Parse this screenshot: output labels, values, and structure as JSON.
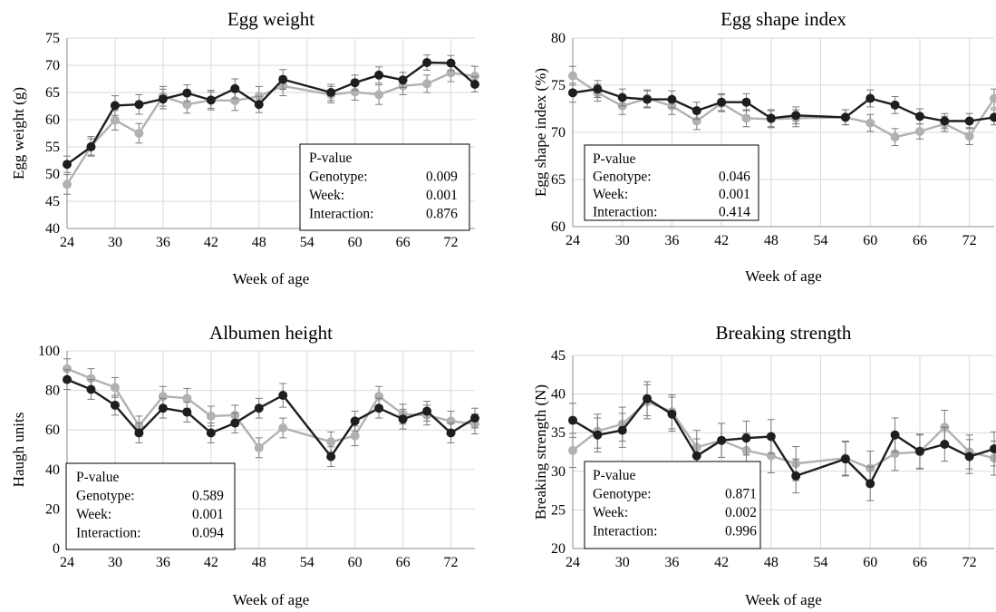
{
  "colors": {
    "genotype_a": "#1e1e1e",
    "genotype_b": "#b1b1b1",
    "grid": "#d9d9d9",
    "axis": "#8c8c8c"
  },
  "chart_data": [
    {
      "type": "line",
      "title": "Egg weight",
      "xlabel": "Week of age",
      "ylabel": "Egg weight (g)",
      "xlim": [
        24,
        75
      ],
      "ylim": [
        40,
        75
      ],
      "xticks": [
        "24",
        "30",
        "36",
        "42",
        "48",
        "54",
        "60",
        "66",
        "72"
      ],
      "yticks": [
        "40",
        "45",
        "50",
        "55",
        "60",
        "65",
        "70",
        "75"
      ],
      "grid": true,
      "series": [
        {
          "color": "#1e1e1e",
          "x": [
            24,
            27,
            30,
            33,
            36,
            39,
            42,
            45,
            48,
            51,
            57,
            60,
            63,
            66,
            69,
            72,
            75
          ],
          "y": [
            51.8,
            55.0,
            62.6,
            62.8,
            63.8,
            64.9,
            63.6,
            65.7,
            62.8,
            67.4,
            65.0,
            66.8,
            68.2,
            67.3,
            70.5,
            70.4,
            66.5
          ],
          "err": [
            1.5,
            1.5,
            1.8,
            1.8,
            1.8,
            1.5,
            1.5,
            1.8,
            1.5,
            1.8,
            1.5,
            1.4,
            1.5,
            1.4,
            1.4,
            1.4,
            1.4
          ]
        },
        {
          "color": "#b1b1b1",
          "x": [
            24,
            27,
            30,
            33,
            36,
            39,
            42,
            45,
            48,
            51,
            57,
            60,
            63,
            66,
            69,
            72,
            75
          ],
          "y": [
            48.1,
            55.1,
            59.9,
            57.5,
            64.3,
            62.8,
            63.6,
            63.5,
            64.3,
            66.2,
            64.6,
            65.1,
            64.6,
            66.2,
            66.6,
            68.6,
            68.0
          ],
          "err": [
            1.8,
            1.8,
            1.8,
            1.8,
            1.8,
            1.6,
            1.8,
            1.8,
            1.8,
            1.8,
            1.5,
            1.5,
            1.8,
            1.6,
            1.6,
            1.6,
            1.8
          ]
        }
      ],
      "pvalue_box": {
        "heading": "P-value",
        "legend_position": "bottom-right",
        "rows": [
          {
            "label": "Genotype:",
            "value": "0.009"
          },
          {
            "label": "Week:",
            "value": "0.001"
          },
          {
            "label": "Interaction:",
            "value": "0.876"
          }
        ]
      }
    },
    {
      "type": "line",
      "title": "Egg shape index",
      "xlabel": "Week of age",
      "ylabel": "Egg shape index (%)",
      "xlim": [
        24,
        75
      ],
      "ylim": [
        60,
        80
      ],
      "xticks": [
        "24",
        "30",
        "36",
        "42",
        "48",
        "54",
        "60",
        "66",
        "72"
      ],
      "yticks": [
        "60",
        "65",
        "70",
        "75",
        "80"
      ],
      "grid": true,
      "series": [
        {
          "color": "#1e1e1e",
          "x": [
            24,
            27,
            30,
            33,
            36,
            39,
            42,
            45,
            48,
            51,
            57,
            60,
            63,
            66,
            69,
            72,
            75
          ],
          "y": [
            74.2,
            74.6,
            73.7,
            73.5,
            73.5,
            72.3,
            73.2,
            73.2,
            71.5,
            71.8,
            71.6,
            73.6,
            72.9,
            71.7,
            71.2,
            71.2,
            71.6
          ],
          "err": [
            1.0,
            0.9,
            0.9,
            0.9,
            0.9,
            0.9,
            0.9,
            0.9,
            0.9,
            0.9,
            0.8,
            0.9,
            0.9,
            0.8,
            0.8,
            0.8,
            0.8
          ]
        },
        {
          "color": "#b1b1b1",
          "x": [
            24,
            27,
            30,
            33,
            36,
            39,
            42,
            45,
            48,
            51,
            57,
            60,
            63,
            66,
            69,
            72,
            75
          ],
          "y": [
            76.0,
            74.2,
            72.8,
            73.6,
            72.8,
            71.2,
            73.1,
            71.5,
            71.4,
            71.5,
            71.6,
            71.0,
            69.5,
            70.1,
            70.9,
            69.6,
            73.6
          ],
          "err": [
            1.0,
            0.9,
            0.9,
            0.9,
            0.9,
            0.9,
            0.9,
            0.9,
            0.9,
            0.9,
            0.8,
            0.9,
            0.9,
            0.8,
            0.8,
            0.9,
            1.0
          ]
        }
      ],
      "pvalue_box": {
        "heading": "P-value",
        "legend_position": "bottom-left",
        "rows": [
          {
            "label": "Genotype:",
            "value": "0.046"
          },
          {
            "label": "Week:",
            "value": "0.001"
          },
          {
            "label": "Interaction:",
            "value": "0.414"
          }
        ]
      }
    },
    {
      "type": "line",
      "title": "Albumen height",
      "xlabel": "Week of age",
      "ylabel": "Haugh units",
      "xlim": [
        24,
        75
      ],
      "ylim": [
        0,
        100
      ],
      "xticks": [
        "24",
        "30",
        "36",
        "42",
        "48",
        "54",
        "60",
        "66",
        "72"
      ],
      "yticks": [
        "0",
        "20",
        "40",
        "60",
        "80",
        "100"
      ],
      "grid": true,
      "series": [
        {
          "color": "#1e1e1e",
          "x": [
            24,
            27,
            30,
            33,
            36,
            39,
            42,
            45,
            48,
            51,
            57,
            60,
            63,
            66,
            69,
            72,
            75
          ],
          "y": [
            85.5,
            80.5,
            72.5,
            58.5,
            71.0,
            69.0,
            58.5,
            63.5,
            71.0,
            77.5,
            46.5,
            64.5,
            71.0,
            65.5,
            69.5,
            58.5,
            66.0
          ],
          "err": [
            5,
            5,
            5,
            5,
            5,
            5,
            5,
            5,
            5,
            6,
            5,
            5,
            5,
            5,
            5,
            5,
            5
          ]
        },
        {
          "color": "#b1b1b1",
          "x": [
            24,
            27,
            30,
            33,
            36,
            39,
            42,
            45,
            48,
            51,
            57,
            60,
            63,
            66,
            69,
            72,
            75
          ],
          "y": [
            91.0,
            86.0,
            81.5,
            62.0,
            77.0,
            76.0,
            67.0,
            67.5,
            51.0,
            61.0,
            54.0,
            57.0,
            77.0,
            68.0,
            67.5,
            64.5,
            63.0
          ],
          "err": [
            5,
            5,
            5,
            5,
            5,
            5,
            5,
            5,
            5,
            5,
            5,
            5,
            5,
            5,
            5,
            5,
            5
          ]
        }
      ],
      "pvalue_box": {
        "heading": "P-value",
        "legend_position": "bottom-left",
        "rows": [
          {
            "label": "Genotype:",
            "value": "0.589"
          },
          {
            "label": "Week:",
            "value": "0.001"
          },
          {
            "label": "Interaction:",
            "value": "0.094"
          }
        ]
      }
    },
    {
      "type": "line",
      "title": "Breaking strength",
      "xlabel": "Week of age",
      "ylabel": "Breaking strength (N)",
      "xlim": [
        24,
        75
      ],
      "ylim": [
        20,
        45
      ],
      "xticks": [
        "24",
        "30",
        "36",
        "42",
        "48",
        "54",
        "60",
        "66",
        "72"
      ],
      "yticks": [
        "20",
        "25",
        "30",
        "35",
        "40",
        "45"
      ],
      "grid": true,
      "series": [
        {
          "color": "#1e1e1e",
          "x": [
            24,
            27,
            30,
            33,
            36,
            39,
            42,
            45,
            48,
            51,
            57,
            60,
            63,
            66,
            69,
            72,
            75
          ],
          "y": [
            36.6,
            34.7,
            35.3,
            39.4,
            37.4,
            32.0,
            34.0,
            34.3,
            34.5,
            29.4,
            31.6,
            28.4,
            34.7,
            32.6,
            33.5,
            31.9,
            32.9
          ],
          "err": [
            2.2,
            2.2,
            2.2,
            2.2,
            2.2,
            2.2,
            2.2,
            2.2,
            2.2,
            2.2,
            2.2,
            2.2,
            2.2,
            2.2,
            2.2,
            2.2,
            2.2
          ]
        },
        {
          "color": "#b1b1b1",
          "x": [
            24,
            27,
            30,
            33,
            36,
            39,
            42,
            45,
            48,
            51,
            57,
            60,
            63,
            66,
            69,
            72,
            75
          ],
          "y": [
            32.7,
            35.2,
            36.1,
            39.0,
            37.7,
            33.1,
            34.0,
            32.7,
            32.0,
            31.0,
            31.7,
            30.4,
            32.3,
            32.5,
            35.7,
            32.5,
            31.7
          ],
          "err": [
            2.2,
            2.2,
            2.2,
            2.2,
            2.2,
            2.2,
            2.2,
            2.2,
            2.2,
            2.2,
            2.2,
            2.2,
            2.2,
            2.2,
            2.2,
            2.2,
            2.2
          ]
        }
      ],
      "pvalue_box": {
        "heading": "P-value",
        "legend_position": "bottom-left",
        "rows": [
          {
            "label": "Genotype:",
            "value": "0.871"
          },
          {
            "label": "Week:",
            "value": "0.002"
          },
          {
            "label": "Interaction:",
            "value": "0.996"
          }
        ]
      }
    }
  ]
}
